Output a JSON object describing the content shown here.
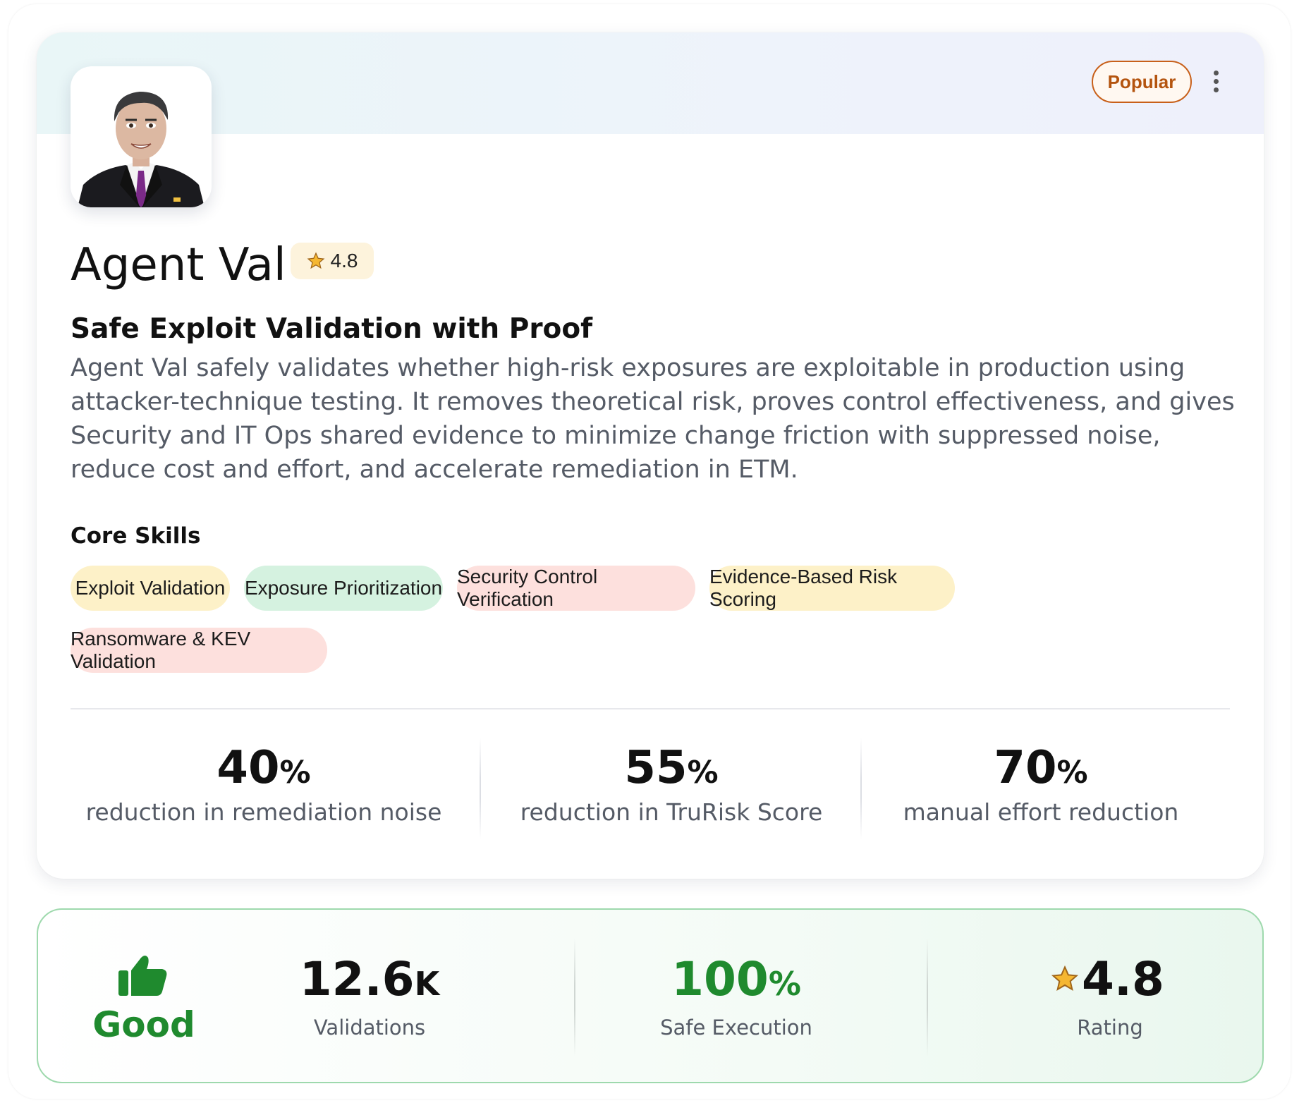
{
  "agent": {
    "name": "Agent Val",
    "rating": "4.8",
    "badge": "Popular",
    "subtitle": "Safe Exploit Validation with Proof",
    "description": "Agent Val safely validates whether high-risk exposures are exploitable in production using attacker-technique testing. It removes theoretical risk, proves control effectiveness, and gives Security and IT Ops shared evidence to minimize change friction with suppressed noise, reduce cost and effort, and accelerate remediation in ETM."
  },
  "core_skills": {
    "heading": "Core Skills",
    "items": [
      {
        "label": "Exploit Validation",
        "color": "#fdf1c8"
      },
      {
        "label": "Exposure Prioritization",
        "color": "#d5f2e0"
      },
      {
        "label": "Security Control Verification",
        "color": "#fde0dd"
      },
      {
        "label": "Evidence-Based Risk Scoring",
        "color": "#fdf1c8"
      },
      {
        "label": "Ransomware & KEV Validation",
        "color": "#fde0dd"
      }
    ]
  },
  "stats": [
    {
      "value": "40",
      "unit": "%",
      "label": "reduction in remediation noise"
    },
    {
      "value": "55",
      "unit": "%",
      "label": "reduction in TruRisk Score"
    },
    {
      "value": "70",
      "unit": "%",
      "label": "manual effort reduction"
    }
  ],
  "metrics": {
    "status": {
      "label": "Good",
      "color": "#1f8a2e",
      "icon": "thumbs-up-icon"
    },
    "validations": {
      "value": "12.6",
      "suffix": "K",
      "label": "Validations"
    },
    "safe_execution": {
      "value": "100",
      "suffix": "%",
      "label": "Safe Execution",
      "color": "#1f8a2e"
    },
    "rating": {
      "value": "4.8",
      "label": "Rating",
      "icon": "star-icon"
    }
  }
}
